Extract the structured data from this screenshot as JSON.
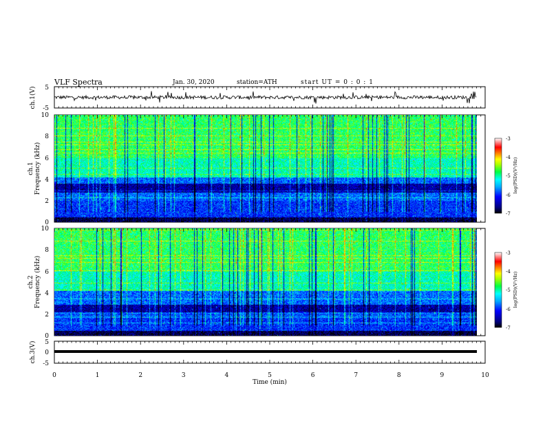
{
  "header": {
    "title": "VLF Spectra",
    "date": "Jan. 30, 2020",
    "station": "station=ATH",
    "start_ut": "start UT = 0 : 0 : 1"
  },
  "colors": {
    "colormap": [
      "#000000",
      "#000080",
      "#0000ff",
      "#00aaff",
      "#00ffff",
      "#00ff66",
      "#66ff00",
      "#ffff00",
      "#ff8000",
      "#ff0000",
      "#ffffff"
    ],
    "trace": "#000000",
    "background": "#ffffff"
  },
  "chart_data": [
    {
      "type": "line",
      "name": "ch1-waveform",
      "ylabel": "ch.1(V)",
      "ylim": [
        -5,
        5
      ],
      "yticks": [
        5,
        -5
      ],
      "xlim": [
        0,
        10
      ],
      "description_value": "noisy waveform around 0 V with spikes up to about ±3 V"
    },
    {
      "type": "heatmap",
      "name": "ch1-spectrogram",
      "ylabel": "ch.1 Frequency (kHz)",
      "ylim": [
        0,
        10
      ],
      "yticks": [
        0,
        2,
        4,
        6,
        8,
        10
      ],
      "xlim": [
        0,
        9.8
      ],
      "colorbar": {
        "label": "log(PSD)(V²/Hz)",
        "range": [
          -7,
          -3
        ],
        "ticks": [
          -3,
          -4,
          -5,
          -6,
          -7
        ]
      }
    },
    {
      "type": "heatmap",
      "name": "ch2-spectrogram",
      "ylabel": "ch.2 Frequency (kHz)",
      "ylim": [
        0,
        10
      ],
      "yticks": [
        0,
        2,
        4,
        6,
        8,
        10
      ],
      "xlim": [
        0,
        9.8
      ],
      "colorbar": {
        "label": "log(PSD)(V²/Hz)",
        "range": [
          -7,
          -3
        ],
        "ticks": [
          -3,
          -4,
          -5,
          -6,
          -7
        ]
      }
    },
    {
      "type": "line",
      "name": "ch3-waveform",
      "ylabel": "ch.3(V)",
      "ylim": [
        -5,
        5
      ],
      "yticks": [
        5,
        0,
        -5
      ],
      "y_constant": -2,
      "xlim": [
        0,
        9.8
      ]
    }
  ],
  "x_axis": {
    "label": "Time (min)",
    "ticks": [
      0,
      1,
      2,
      3,
      4,
      5,
      6,
      7,
      8,
      9,
      10
    ],
    "range": [
      0,
      10
    ]
  },
  "tick_labels": {
    "wave_y": [
      "5",
      "-5"
    ],
    "spec_y": [
      "0",
      "2",
      "4",
      "6",
      "8",
      "10"
    ],
    "ch3_y": [
      "5",
      "0",
      "-5"
    ],
    "cbar": [
      "-3",
      "-4",
      "-5",
      "-6",
      "-7"
    ]
  },
  "labels": {
    "ch1_wave": "ch.1(V)",
    "ch1_spec": "ch.1",
    "ch2_spec": "ch.2",
    "freq": "Frequency (kHz)",
    "ch3_wave": "ch.3(V)",
    "cbar": "log(PSD)(V²/Hz)"
  }
}
